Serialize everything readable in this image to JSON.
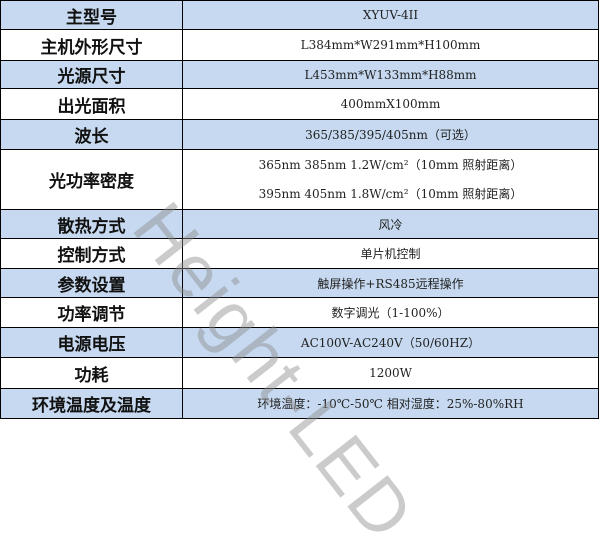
{
  "rows": [
    {
      "label": "主型号",
      "value": "XYUV-4II",
      "highlight": true
    },
    {
      "label": "主机外形尺寸",
      "value": "L384mm*W291mm*H100mm",
      "highlight": false
    },
    {
      "label": "光源尺寸",
      "value": "L453mm*W133mm*H88mm",
      "highlight": true
    },
    {
      "label": "出光面积",
      "value": "400mmX100mm",
      "highlight": false
    },
    {
      "label": "波长",
      "value": "365/385/395/405nm（可选）",
      "highlight": true
    },
    {
      "label": "光功率密度",
      "values": [
        "365nm 385nm  1.2W/cm²（10mm 照射距离）",
        "395nm 405nm  1.8W/cm²（10mm 照射距离）"
      ],
      "highlight": false
    },
    {
      "label": "散热方式",
      "value": "风冷",
      "highlight": true
    },
    {
      "label": "控制方式",
      "value": "单片机控制",
      "highlight": false
    },
    {
      "label": "参数设置",
      "value": "触屏操作+RS485远程操作",
      "highlight": true
    },
    {
      "label": "功率调节",
      "value": "数字调光（1-100%）",
      "highlight": false
    },
    {
      "label": "电源电压",
      "value": "AC100V-AC240V（50/60HZ）",
      "highlight": true
    },
    {
      "label": "功耗",
      "value": "1200W",
      "highlight": false
    },
    {
      "label": "环境温度及温度",
      "value": "环境温度：-10℃-50℃ 相对湿度：25%-80%RH",
      "highlight": true
    }
  ],
  "watermark": "Height-LED",
  "colors": {
    "highlight_row": "#c6d9f0",
    "border": "#000000"
  }
}
